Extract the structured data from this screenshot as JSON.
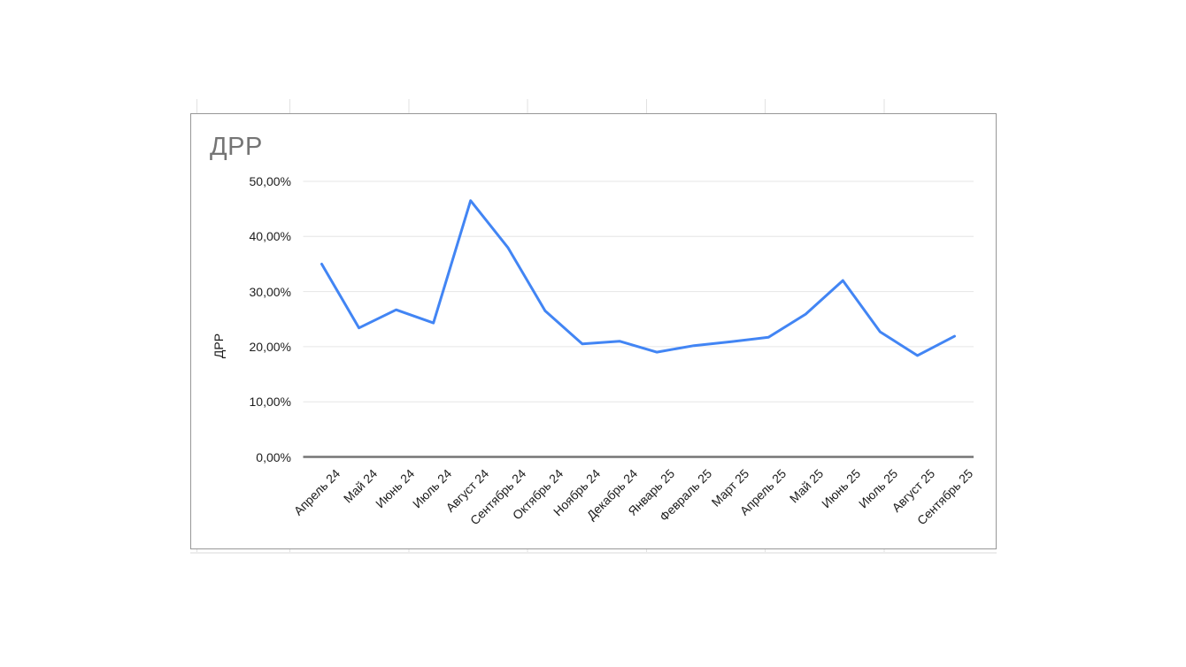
{
  "chart_card": {
    "title": "ДРР"
  },
  "chart_data": {
    "type": "line",
    "title": "ДРР",
    "xlabel": "",
    "ylabel": "ДРР",
    "legend_position": "none",
    "grid": true,
    "ylim": [
      0,
      50
    ],
    "yticks": [
      {
        "value": 0,
        "label": "0,00%"
      },
      {
        "value": 10,
        "label": "10,00%"
      },
      {
        "value": 20,
        "label": "20,00%"
      },
      {
        "value": 30,
        "label": "30,00%"
      },
      {
        "value": 40,
        "label": "40,00%"
      },
      {
        "value": 50,
        "label": "50,00%"
      }
    ],
    "categories": [
      "Апрель 24",
      "Май 24",
      "Июнь 24",
      "Июль 24",
      "Август 24",
      "Сентябрь 24",
      "Октябрь 24",
      "Ноябрь 24",
      "Декабрь 24",
      "Январь 25",
      "Февраль 25",
      "Март 25",
      "Апрель 25",
      "Май 25",
      "Июнь 25",
      "Июль 25",
      "Август 25",
      "Сентябрь 25"
    ],
    "series": [
      {
        "name": "ДРР",
        "color": "#4285f4",
        "values": [
          35.0,
          23.4,
          26.7,
          24.3,
          46.5,
          38.0,
          26.5,
          20.5,
          21.0,
          19.0,
          20.2,
          20.9,
          21.7,
          25.9,
          32.0,
          22.7,
          18.4,
          21.9
        ]
      }
    ]
  },
  "colors": {
    "line": "#4285f4",
    "gridline": "#e6e6e6",
    "axis_line": "#757575",
    "tick_text": "#1d1d1d",
    "title_text": "#757575",
    "card_border": "#979797",
    "sheet_gridline": "#e2e2e2",
    "background": "#ffffff"
  }
}
